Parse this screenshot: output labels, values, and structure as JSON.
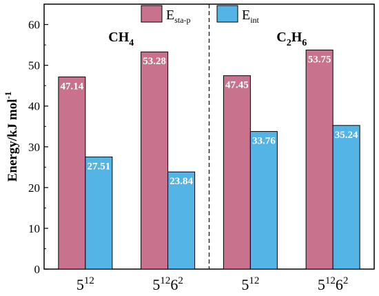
{
  "chart_data": {
    "type": "bar",
    "ylabel": "Energy/kJ mol",
    "ylabel_sup": "-1",
    "ylim": [
      0,
      65
    ],
    "yticks": [
      0,
      10,
      20,
      30,
      40,
      50,
      60
    ],
    "categories": [
      {
        "base": "5",
        "sup1": "12",
        "mid": "",
        "sup2": ""
      },
      {
        "base": "5",
        "sup1": "12",
        "mid": "6",
        "sup2": "2"
      },
      {
        "base": "5",
        "sup1": "12",
        "mid": "",
        "sup2": ""
      },
      {
        "base": "5",
        "sup1": "12",
        "mid": "6",
        "sup2": "2"
      }
    ],
    "groups": [
      {
        "label_main": "CH",
        "label_sub": "4",
        "label_main2": "",
        "label_sub2": ""
      },
      {
        "label_main": "C",
        "label_sub": "2",
        "label_main2": "H",
        "label_sub2": "6"
      }
    ],
    "series": [
      {
        "name": "E",
        "name_sub": "sta-p",
        "color": "#c9728e",
        "values": [
          47.14,
          53.28,
          47.45,
          53.75
        ]
      },
      {
        "name": "E",
        "name_sub": "int",
        "color": "#54b4e6",
        "values": [
          27.51,
          23.84,
          33.76,
          35.24
        ]
      }
    ],
    "grid": false,
    "legend": "top-center"
  }
}
